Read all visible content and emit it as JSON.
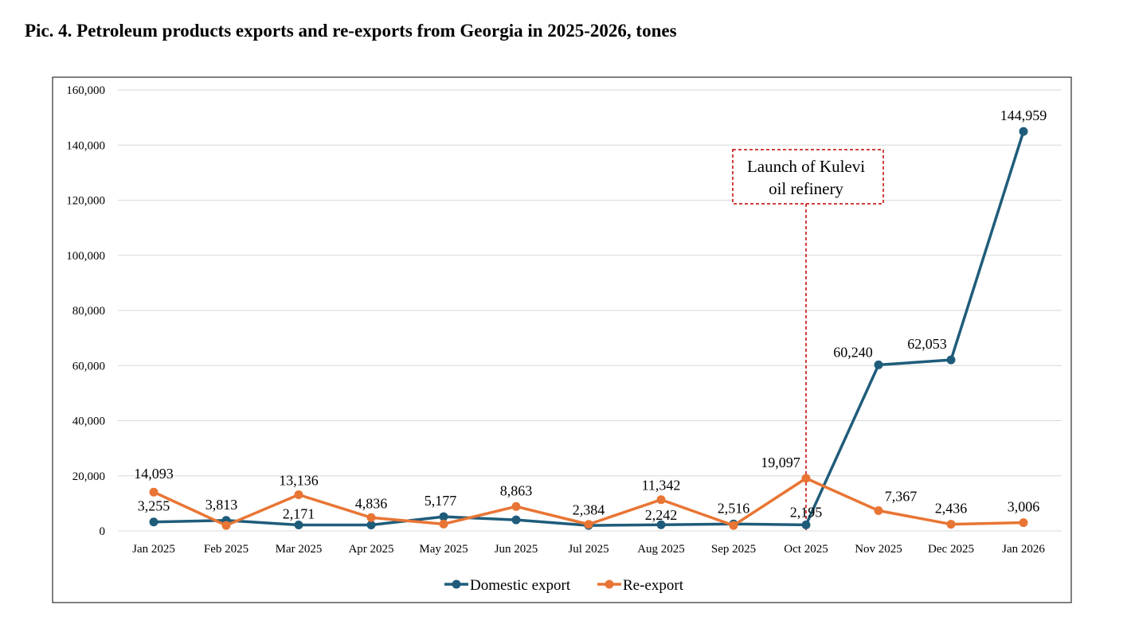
{
  "title": "Pic. 4. Petroleum products exports and re-exports from Georgia in 2025-2026, tones",
  "chart_data": {
    "type": "line",
    "title": "Pic. 4. Petroleum products exports and re-exports from Georgia in 2025-2026, tones",
    "xlabel": "",
    "ylabel": "",
    "ylim": [
      0,
      160000
    ],
    "yticks": [
      0,
      20000,
      40000,
      60000,
      80000,
      100000,
      120000,
      140000,
      160000
    ],
    "ytick_labels": [
      "0",
      "20,000",
      "40,000",
      "60,000",
      "80,000",
      "100,000",
      "120,000",
      "140,000",
      "160,000"
    ],
    "grid": true,
    "legend_position": "bottom",
    "categories": [
      "Jan 2025",
      "Feb 2025",
      "Mar 2025",
      "Apr 2025",
      "May 2025",
      "Jun 2025",
      "Jul 2025",
      "Aug 2025",
      "Sep 2025",
      "Oct 2025",
      "Nov 2025",
      "Dec 2025",
      "Jan 2026"
    ],
    "series": [
      {
        "name": "Domestic export",
        "color": "#1f5c7a",
        "values": [
          3255,
          3813,
          2171,
          2171,
          5177,
          4000,
          2000,
          2242,
          2516,
          2195,
          60240,
          62053,
          144959
        ],
        "labels": [
          "3,255",
          "3,813",
          "2,171",
          "",
          "5,177",
          "",
          "",
          "2,242",
          "2,516",
          "2,195",
          "60,240",
          "62,053",
          "144,959"
        ]
      },
      {
        "name": "Re-export",
        "color": "#e87534",
        "values": [
          14093,
          2000,
          13136,
          4836,
          2500,
          8863,
          2384,
          11342,
          2000,
          19097,
          7367,
          2436,
          3006
        ],
        "labels": [
          "14,093",
          "",
          "13,136",
          "4,836",
          "",
          "8,863",
          "2,384",
          "11,342",
          "",
          "19,097",
          "7,367",
          "2,436",
          "3,006"
        ]
      }
    ],
    "annotation": {
      "text_lines": [
        "Launch of Kulevi",
        "oil refinery"
      ],
      "category": "Oct 2025",
      "border_color": "#c00000"
    }
  }
}
